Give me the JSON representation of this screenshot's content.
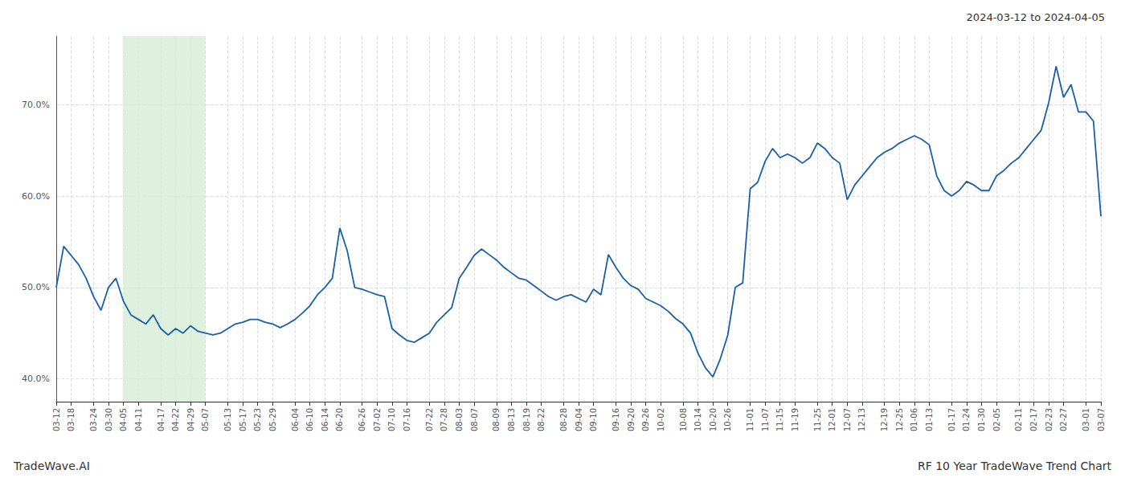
{
  "chart_data": {
    "type": "line",
    "title": "2024-03-12 to 2024-04-05",
    "annotations": [
      "TradeWave.AI",
      "RF 10 Year TradeWave Trend Chart"
    ],
    "categories": [
      "03-12",
      null,
      "03-18",
      null,
      null,
      "03-24",
      null,
      "03-30",
      null,
      "04-05",
      null,
      "04-11",
      null,
      null,
      "04-17",
      null,
      "04-22",
      null,
      "04-29",
      null,
      "05-07",
      null,
      null,
      "05-13",
      null,
      "05-17",
      null,
      "05-23",
      null,
      "05-29",
      null,
      null,
      "06-04",
      null,
      "06-10",
      null,
      "06-14",
      null,
      "06-20",
      null,
      null,
      "06-26",
      null,
      "07-02",
      null,
      "07-10",
      null,
      "07-16",
      null,
      null,
      "07-22",
      null,
      "07-28",
      null,
      "08-03",
      null,
      "08-07",
      null,
      null,
      "08-09",
      null,
      "08-13",
      null,
      "08-19",
      null,
      "08-22",
      null,
      null,
      "08-28",
      null,
      "09-04",
      null,
      "09-10",
      null,
      null,
      "09-16",
      null,
      "09-20",
      null,
      "09-26",
      null,
      "10-02",
      null,
      null,
      "10-08",
      null,
      "10-14",
      null,
      "10-20",
      null,
      "10-26",
      null,
      null,
      "11-01",
      null,
      "11-07",
      null,
      "11-15",
      null,
      "11-19",
      null,
      null,
      "11-25",
      null,
      "12-01",
      null,
      "12-07",
      null,
      "12-13",
      null,
      null,
      "12-19",
      null,
      "12-25",
      null,
      "01-06",
      null,
      "01-13",
      null,
      null,
      "01-17",
      null,
      "01-24",
      null,
      "01-30",
      null,
      "02-05",
      null,
      null,
      "02-11",
      null,
      "02-17",
      null,
      "02-23",
      null,
      "02-27",
      null,
      null,
      "03-01",
      null,
      "03-07"
    ],
    "values": [
      0.5,
      0.545,
      0.535,
      0.525,
      0.51,
      0.49,
      0.475,
      0.5,
      0.51,
      0.485,
      0.47,
      0.465,
      0.46,
      0.47,
      0.455,
      0.448,
      0.455,
      0.45,
      0.458,
      0.452,
      0.45,
      0.448,
      0.45,
      0.455,
      0.46,
      0.462,
      0.465,
      0.465,
      0.462,
      0.46,
      0.456,
      0.46,
      0.465,
      0.472,
      0.48,
      0.492,
      0.5,
      0.51,
      0.565,
      0.54,
      0.5,
      0.498,
      0.495,
      0.492,
      0.49,
      0.455,
      0.448,
      0.442,
      0.44,
      0.445,
      0.45,
      0.462,
      0.47,
      0.478,
      0.51,
      0.522,
      0.535,
      0.542,
      0.536,
      0.53,
      0.522,
      0.516,
      0.51,
      0.508,
      0.502,
      0.496,
      0.49,
      0.486,
      0.49,
      0.492,
      0.488,
      0.484,
      0.498,
      0.492,
      0.536,
      0.522,
      0.51,
      0.502,
      0.498,
      0.488,
      0.484,
      0.48,
      0.474,
      0.466,
      0.46,
      0.45,
      0.428,
      0.412,
      0.402,
      0.422,
      0.448,
      0.5,
      0.505,
      0.608,
      0.615,
      0.638,
      0.652,
      0.642,
      0.646,
      0.642,
      0.636,
      0.642,
      0.658,
      0.652,
      0.642,
      0.636,
      0.596,
      0.612,
      0.622,
      0.632,
      0.642,
      0.648,
      0.652,
      0.658,
      0.662,
      0.666,
      0.662,
      0.656,
      0.622,
      0.606,
      0.6,
      0.606,
      0.616,
      0.612,
      0.606,
      0.606,
      0.622,
      0.628,
      0.636,
      0.642,
      0.652,
      0.662,
      0.672,
      0.702,
      0.742,
      0.708,
      0.722,
      0.692,
      0.692,
      0.682,
      0.578
    ],
    "color": "#1a5fa8",
    "highlight": {
      "start": "04-05",
      "end": "05-07",
      "color": "#d6ecd6"
    },
    "ylim": [
      0.375,
      0.775
    ],
    "yticks": [
      {
        "value": 0.4,
        "label": "40.0%"
      },
      {
        "value": 0.5,
        "label": "50.0%"
      },
      {
        "value": 0.6,
        "label": "60.0%"
      },
      {
        "value": 0.7,
        "label": "70.0%"
      }
    ],
    "grid": true
  }
}
